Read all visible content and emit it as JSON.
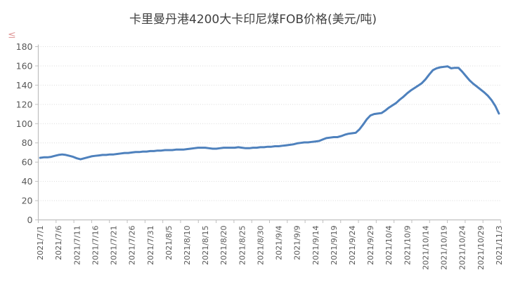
{
  "watermark": {
    "glyph": "≤"
  },
  "chart_data": {
    "type": "line",
    "title": "卡里曼丹港4200大卡印尼煤FOB价格(美元/吨)",
    "legend": "none",
    "grid": "horizontal-dotted",
    "ylim": [
      0,
      180
    ],
    "ytick_step": 20,
    "yticks": [
      0,
      20,
      40,
      60,
      80,
      100,
      120,
      140,
      160,
      180
    ],
    "x_label_every": 5,
    "xtick_labels": [
      "2021/7/1",
      "2021/7/6",
      "2021/7/11",
      "2021/7/16",
      "2021/7/21",
      "2021/7/26",
      "2021/7/31",
      "2021/8/5",
      "2021/8/10",
      "2021/8/15",
      "2021/8/20",
      "2021/8/25",
      "2021/8/30",
      "2021/9/4",
      "2021/9/9",
      "2021/9/14",
      "2021/9/19",
      "2021/9/24",
      "2021/9/29",
      "2021/10/4",
      "2021/10/9",
      "2021/10/14",
      "2021/10/19",
      "2021/10/24",
      "2021/10/29",
      "2021/11/3"
    ],
    "x_start": "2021/7/1",
    "x_end": "2021/11/3",
    "points": 126,
    "values": [
      64.5,
      65,
      65,
      65.5,
      66.5,
      67.5,
      68,
      67.5,
      66.5,
      65.5,
      64,
      63,
      64,
      65,
      66,
      66.5,
      67,
      67.5,
      67.5,
      68,
      68,
      68.5,
      69,
      69.5,
      69.5,
      70,
      70.5,
      70.5,
      71,
      71,
      71.5,
      71.5,
      72,
      72,
      72.5,
      72.5,
      72.5,
      73,
      73,
      73,
      73.5,
      74,
      74.5,
      75,
      75,
      75,
      74.5,
      74,
      74,
      74.5,
      75,
      75,
      75,
      75,
      75.5,
      75,
      74.5,
      74.5,
      75,
      75,
      75.5,
      75.5,
      76,
      76,
      76.5,
      76.5,
      77,
      77.5,
      78,
      78.5,
      79.5,
      80,
      80.5,
      80.5,
      81,
      81.5,
      82,
      83.5,
      85,
      85.5,
      86,
      86,
      87,
      88.5,
      89.5,
      90,
      90.5,
      94,
      99,
      104.5,
      108.5,
      110,
      110.5,
      111,
      113.5,
      116.5,
      119,
      121.5,
      125,
      128,
      131.5,
      134.5,
      137,
      139.5,
      142,
      146,
      151,
      155.5,
      157.5,
      158.5,
      159,
      159.5,
      157.5,
      158,
      158,
      154,
      149.5,
      145,
      141.5,
      138.5,
      135.5,
      132.5,
      129,
      124.5,
      118.5,
      110.5
    ],
    "colors": {
      "series": "#4e81bd",
      "gridline": "#d9d9d9",
      "axis": "#bfbfbf",
      "tick_text": "#595959",
      "title_text": "#404040",
      "background": "#ffffff"
    }
  }
}
